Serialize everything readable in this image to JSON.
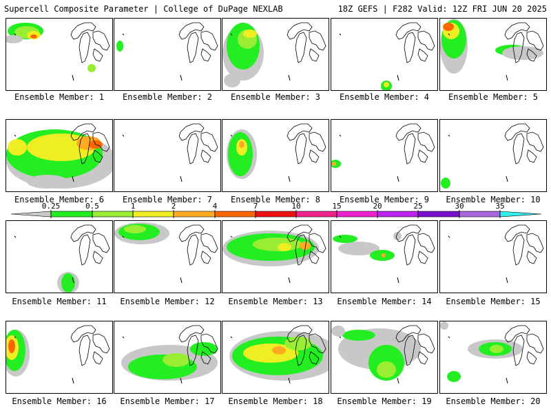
{
  "header": {
    "left": "Supercell Composite Parameter | College of DuPage NEXLAB",
    "right": "18Z GEFS | F282 Valid: 12Z FRI JUN 20 2025"
  },
  "colorbar": {
    "ticks": [
      "0.25",
      "0.5",
      "1",
      "2",
      "4",
      "7",
      "10",
      "15",
      "20",
      "25",
      "30",
      "35"
    ],
    "colors": [
      "#c8c8c8",
      "#22ee22",
      "#99ee33",
      "#eeee22",
      "#ffaa22",
      "#ff6600",
      "#ee1111",
      "#ee2288",
      "#ee22cc",
      "#bb22ee",
      "#7711cc",
      "#aa66dd",
      "#33eeee"
    ]
  },
  "panels": [
    {
      "label": "Ensemble Member: 1"
    },
    {
      "label": "Ensemble Member: 2"
    },
    {
      "label": "Ensemble Member: 3"
    },
    {
      "label": "Ensemble Member: 4"
    },
    {
      "label": "Ensemble Member: 5"
    },
    {
      "label": "Ensemble Member: 6"
    },
    {
      "label": "Ensemble Member: 7"
    },
    {
      "label": "Ensemble Member: 8"
    },
    {
      "label": "Ensemble Member: 9"
    },
    {
      "label": "Ensemble Member: 10"
    },
    {
      "label": "Ensemble Member: 11"
    },
    {
      "label": "Ensemble Member: 12"
    },
    {
      "label": "Ensemble Member: 13"
    },
    {
      "label": "Ensemble Member: 14"
    },
    {
      "label": "Ensemble Member: 15"
    },
    {
      "label": "Ensemble Member: 16"
    },
    {
      "label": "Ensemble Member: 17"
    },
    {
      "label": "Ensemble Member: 18"
    },
    {
      "label": "Ensemble Member: 19"
    },
    {
      "label": "Ensemble Member: 20"
    }
  ]
}
